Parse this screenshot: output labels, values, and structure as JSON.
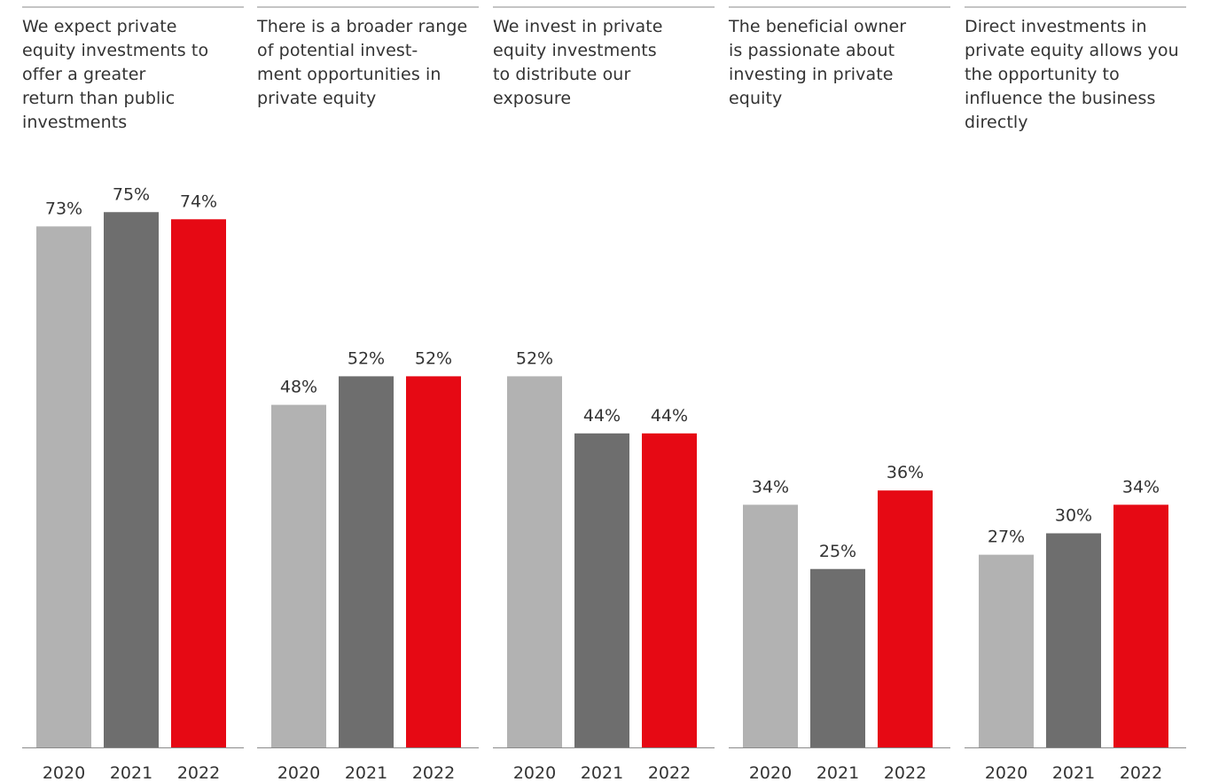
{
  "chart_data": {
    "type": "bar",
    "value_suffix": "%",
    "ylim": [
      0,
      100
    ],
    "legend": "none",
    "grid": false,
    "years": [
      "2020",
      "2021",
      "2022"
    ],
    "colors": {
      "2020": "#b2b2b2",
      "2021": "#6e6e6e",
      "2022": "#e60914"
    },
    "panels": [
      {
        "title": [
          "We expect private",
          "equity investments to",
          "offer a greater",
          "return than public",
          "investments"
        ],
        "values": [
          73,
          75,
          74
        ]
      },
      {
        "title": [
          "There is a broader range",
          "of potential invest-",
          "ment opportunities in",
          "private equity"
        ],
        "values": [
          48,
          52,
          52
        ]
      },
      {
        "title": [
          "We invest in private",
          "equity investments",
          "to distribute our",
          "exposure"
        ],
        "values": [
          52,
          44,
          44
        ]
      },
      {
        "title": [
          "The beneficial owner",
          "is passionate about",
          "investing in private",
          "equity"
        ],
        "values": [
          34,
          25,
          36
        ]
      },
      {
        "title": [
          "Direct investments in",
          "private equity allows you",
          "the opportunity to",
          "influence the business",
          "directly"
        ],
        "values": [
          27,
          30,
          34
        ]
      }
    ]
  }
}
